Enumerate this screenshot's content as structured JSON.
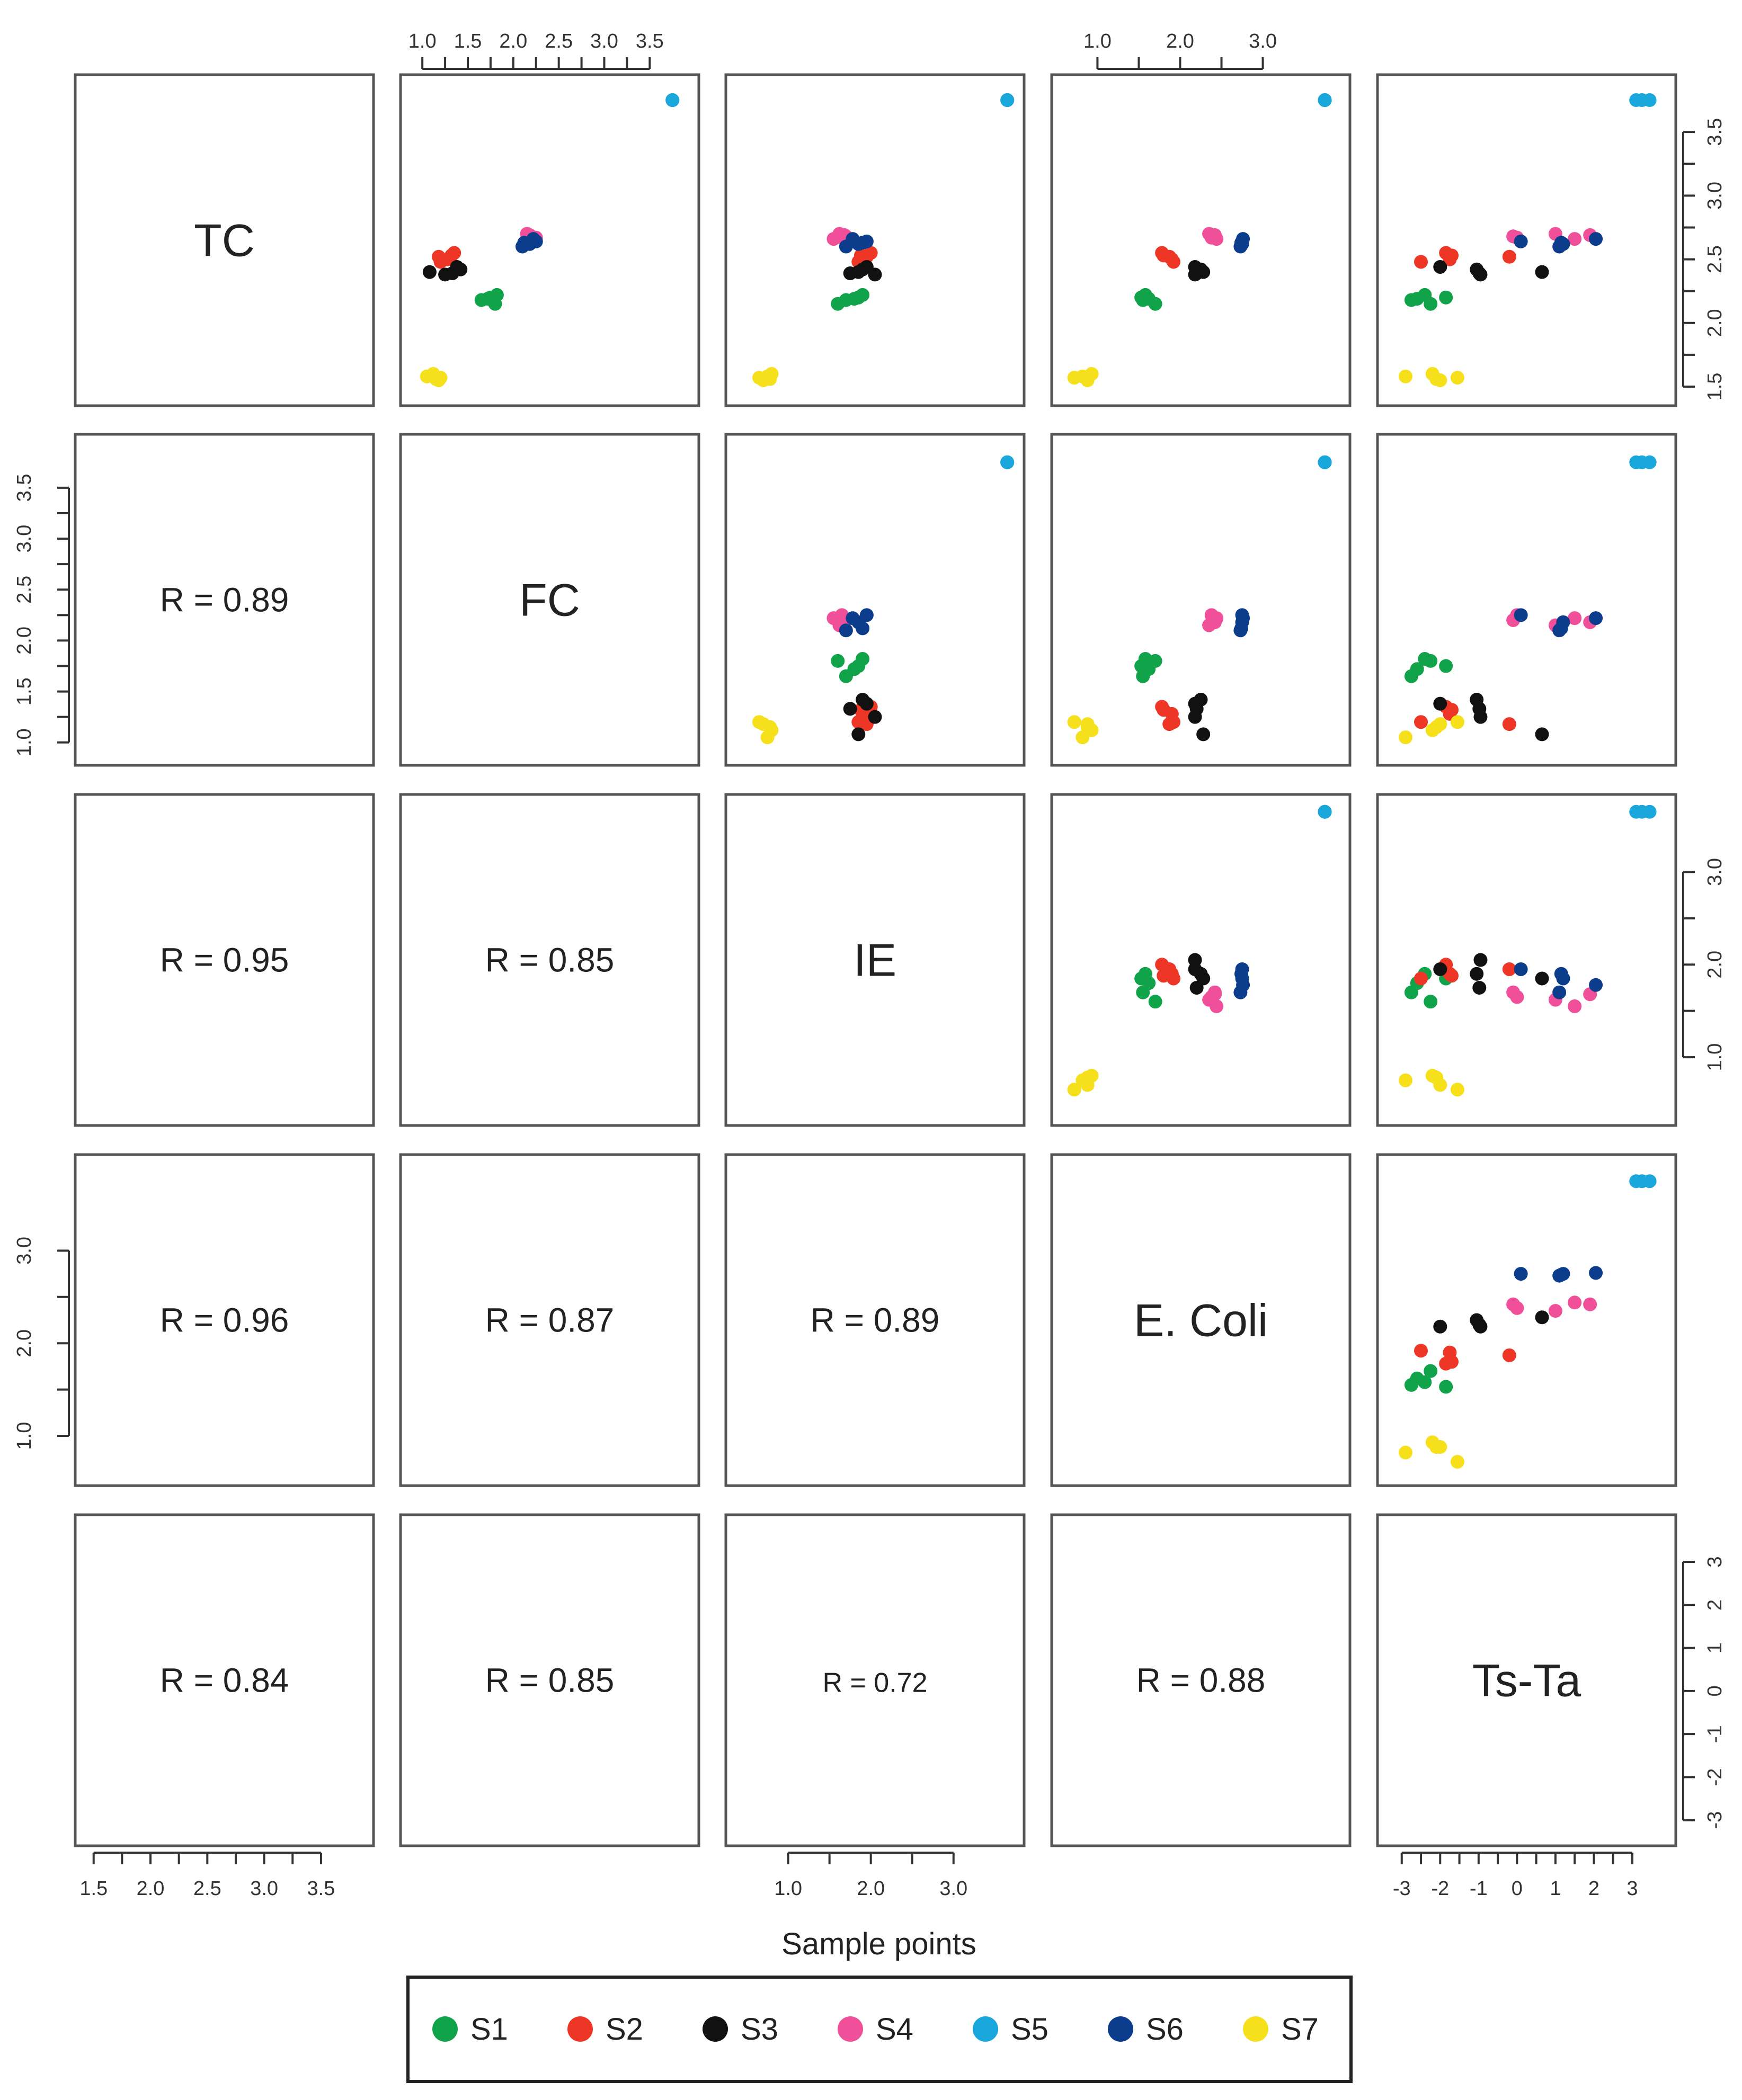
{
  "chart_data": {
    "type": "scatter-matrix",
    "variables": [
      "TC",
      "FC",
      "IE",
      "E. Coli",
      "Ts-Ta"
    ],
    "diagonal_labels": [
      "TC",
      "FC",
      "IE",
      "E. Coli",
      "Ts-Ta"
    ],
    "xlabel": "Sample points",
    "correlations": [
      {
        "row": 1,
        "col": 0,
        "text": "R = 0.89"
      },
      {
        "row": 2,
        "col": 0,
        "text": "R = 0.95"
      },
      {
        "row": 2,
        "col": 1,
        "text": "R = 0.85"
      },
      {
        "row": 3,
        "col": 0,
        "text": "R = 0.96"
      },
      {
        "row": 3,
        "col": 1,
        "text": "R = 0.87"
      },
      {
        "row": 3,
        "col": 2,
        "text": "R = 0.89"
      },
      {
        "row": 4,
        "col": 0,
        "text": "R = 0.84"
      },
      {
        "row": 4,
        "col": 1,
        "text": "R = 0.85"
      },
      {
        "row": 4,
        "col": 2,
        "text": "R = 0.72"
      },
      {
        "row": 4,
        "col": 3,
        "text": "R = 0.88"
      }
    ],
    "ranges": {
      "TC": [
        1.45,
        3.85
      ],
      "FC": [
        0.9,
        3.9
      ],
      "IE": [
        0.4,
        3.7
      ],
      "E. Coli": [
        0.6,
        3.9
      ],
      "Ts-Ta": [
        -3.3,
        3.8
      ]
    },
    "axis_ticks": {
      "TC": [
        "1.5",
        "2.0",
        "2.5",
        "3.0",
        "3.5"
      ],
      "FC": [
        "1.0",
        "1.5",
        "2.0",
        "2.5",
        "3.0",
        "3.5"
      ],
      "IE": [
        "1.0",
        "2.0",
        "3.0"
      ],
      "E. Coli": [
        "1.0",
        "2.0",
        "3.0"
      ],
      "Ts-Ta": [
        "-3",
        "-2",
        "-1",
        "0",
        "1",
        "2",
        "3"
      ]
    },
    "series": [
      {
        "name": "S1",
        "color": "#10a34a",
        "points": [
          [
            2.18,
            1.65,
            1.7,
            1.55,
            -2.75
          ],
          [
            2.19,
            1.72,
            1.8,
            1.62,
            -2.6
          ],
          [
            2.15,
            1.8,
            1.6,
            1.7,
            -2.25
          ],
          [
            2.2,
            1.75,
            1.85,
            1.53,
            -1.85
          ],
          [
            2.22,
            1.82,
            1.9,
            1.58,
            -2.4
          ]
        ]
      },
      {
        "name": "S2",
        "color": "#ee3626",
        "points": [
          [
            2.48,
            1.2,
            1.85,
            1.92,
            -2.5
          ],
          [
            2.55,
            1.35,
            2.0,
            1.78,
            -1.85
          ],
          [
            2.5,
            1.28,
            1.9,
            1.9,
            -1.75
          ],
          [
            2.52,
            1.18,
            1.95,
            1.87,
            -0.2
          ],
          [
            2.53,
            1.32,
            1.88,
            1.8,
            -1.7
          ]
        ]
      },
      {
        "name": "S3",
        "color": "#111111",
        "points": [
          [
            2.44,
            1.38,
            1.95,
            2.18,
            -2.0
          ],
          [
            2.38,
            1.25,
            2.05,
            2.18,
            -0.95
          ],
          [
            2.4,
            1.08,
            1.85,
            2.28,
            0.65
          ],
          [
            2.39,
            1.33,
            1.75,
            2.2,
            -0.98
          ],
          [
            2.42,
            1.42,
            1.9,
            2.25,
            -1.05
          ]
        ]
      },
      {
        "name": "S4",
        "color": "#f0509a",
        "points": [
          [
            2.68,
            2.2,
            1.7,
            2.42,
            -0.1
          ],
          [
            2.7,
            2.15,
            1.62,
            2.35,
            1.0
          ],
          [
            2.66,
            2.22,
            1.55,
            2.44,
            1.5
          ],
          [
            2.69,
            2.18,
            1.68,
            2.42,
            1.9
          ],
          [
            2.67,
            2.25,
            1.65,
            2.38,
            0.0
          ]
        ]
      },
      {
        "name": "S5",
        "color": "#1aa8dc",
        "points": [
          [
            3.75,
            3.75,
            3.65,
            3.75,
            3.1
          ],
          [
            3.75,
            3.75,
            3.65,
            3.75,
            3.25
          ],
          [
            3.75,
            3.75,
            3.65,
            3.75,
            3.45
          ]
        ]
      },
      {
        "name": "S6",
        "color": "#0c3c8c",
        "points": [
          [
            2.64,
            2.25,
            1.95,
            2.75,
            0.1
          ],
          [
            2.6,
            2.1,
            1.7,
            2.73,
            1.1
          ],
          [
            2.62,
            2.18,
            1.85,
            2.75,
            1.2
          ],
          [
            2.66,
            2.22,
            1.78,
            2.76,
            2.05
          ],
          [
            2.63,
            2.12,
            1.9,
            2.74,
            1.15
          ]
        ]
      },
      {
        "name": "S7",
        "color": "#f6e01c",
        "points": [
          [
            1.58,
            1.05,
            0.75,
            0.82,
            -2.9
          ],
          [
            1.55,
            1.18,
            0.7,
            0.88,
            -2.0
          ],
          [
            1.6,
            1.12,
            0.8,
            0.93,
            -2.2
          ],
          [
            1.57,
            1.2,
            0.65,
            0.72,
            -1.55
          ],
          [
            1.56,
            1.15,
            0.78,
            0.88,
            -2.1
          ]
        ]
      }
    ],
    "legend": [
      "S1",
      "S2",
      "S3",
      "S4",
      "S5",
      "S6",
      "S7"
    ]
  }
}
